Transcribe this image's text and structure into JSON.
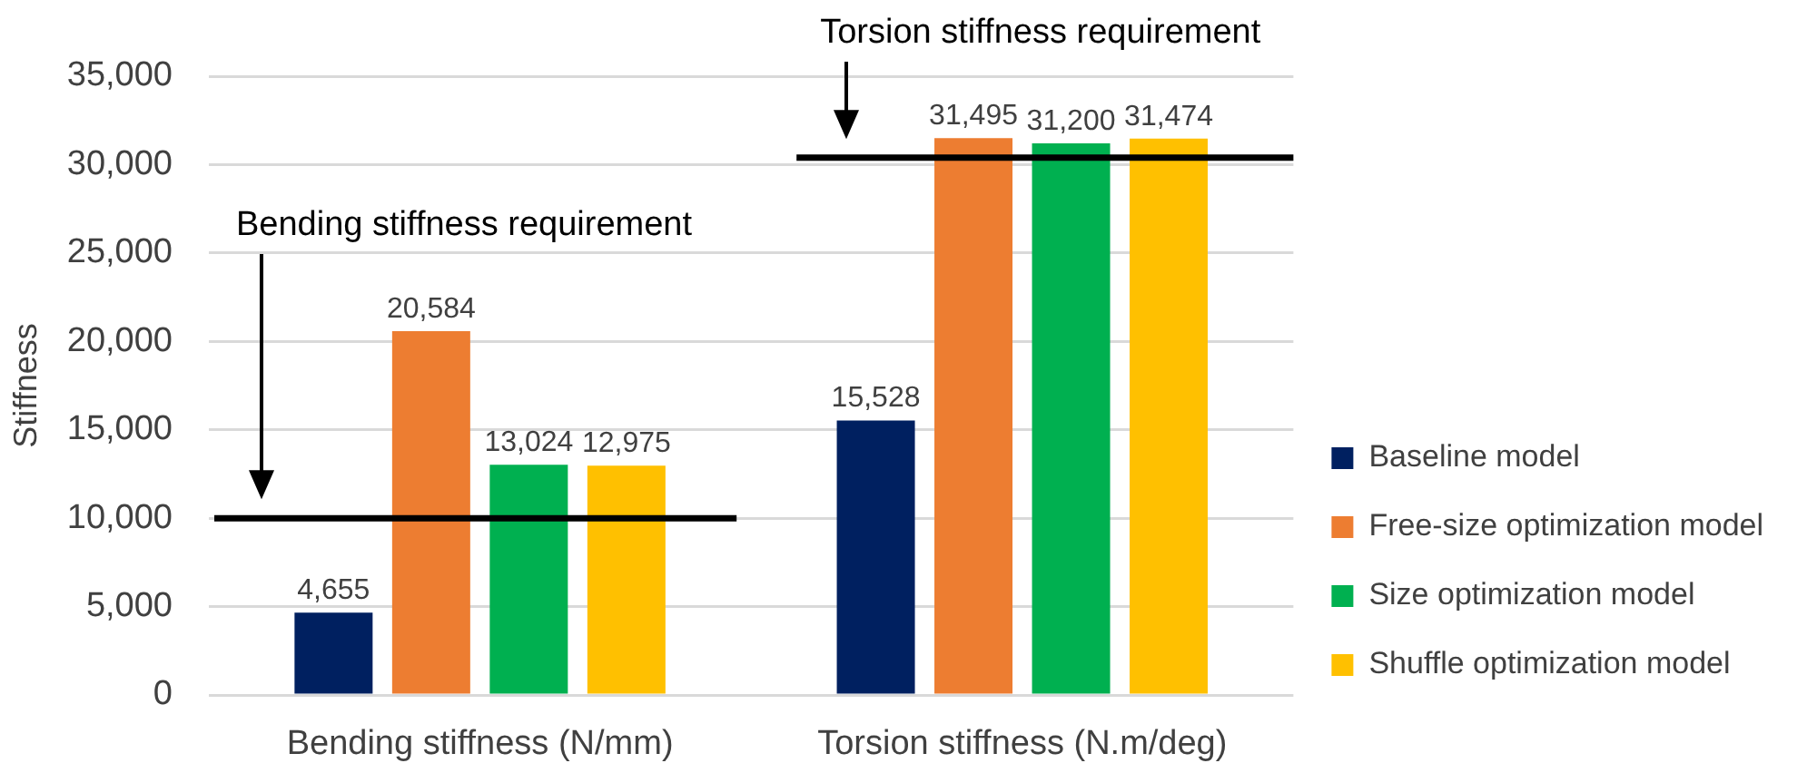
{
  "chart_data": {
    "type": "bar",
    "ylabel": "Stiffness",
    "categories": [
      "Bending stiffness (N/mm)",
      "Torsion stiffness (N.m/deg)"
    ],
    "series": [
      {
        "name": "Baseline model",
        "color": "#002060",
        "values": [
          4655,
          15528
        ],
        "value_labels": [
          "4,655",
          "15,528"
        ]
      },
      {
        "name": "Free-size optimization model",
        "color": "#ed7d31",
        "values": [
          20584,
          31495
        ],
        "value_labels": [
          "20,584",
          "31,495"
        ]
      },
      {
        "name": "Size optimization model",
        "color": "#00b050",
        "values": [
          13024,
          31200
        ],
        "value_labels": [
          "13,024",
          "31,200"
        ]
      },
      {
        "name": "Shuffle optimization model",
        "color": "#ffc000",
        "values": [
          12975,
          31474
        ],
        "value_labels": [
          "12,975",
          "31,474"
        ]
      }
    ],
    "ylim": [
      0,
      35000
    ],
    "yticks": [
      {
        "value": 0,
        "label": "0"
      },
      {
        "value": 5000,
        "label": "5,000"
      },
      {
        "value": 10000,
        "label": "10,000"
      },
      {
        "value": 15000,
        "label": "15,000"
      },
      {
        "value": 20000,
        "label": "20,000"
      },
      {
        "value": 25000,
        "label": "25,000"
      },
      {
        "value": 30000,
        "label": "30,000"
      },
      {
        "value": 35000,
        "label": "35,000"
      }
    ],
    "grid": "y",
    "legend": "right",
    "ref_lines": [
      {
        "axis": "y",
        "value": 10000,
        "color": "#000000"
      },
      {
        "axis": "y",
        "value": 30400,
        "color": "#000000"
      }
    ],
    "annotations": [
      "Bending stiffness requirement",
      "Torsion stiffness requirement"
    ]
  }
}
